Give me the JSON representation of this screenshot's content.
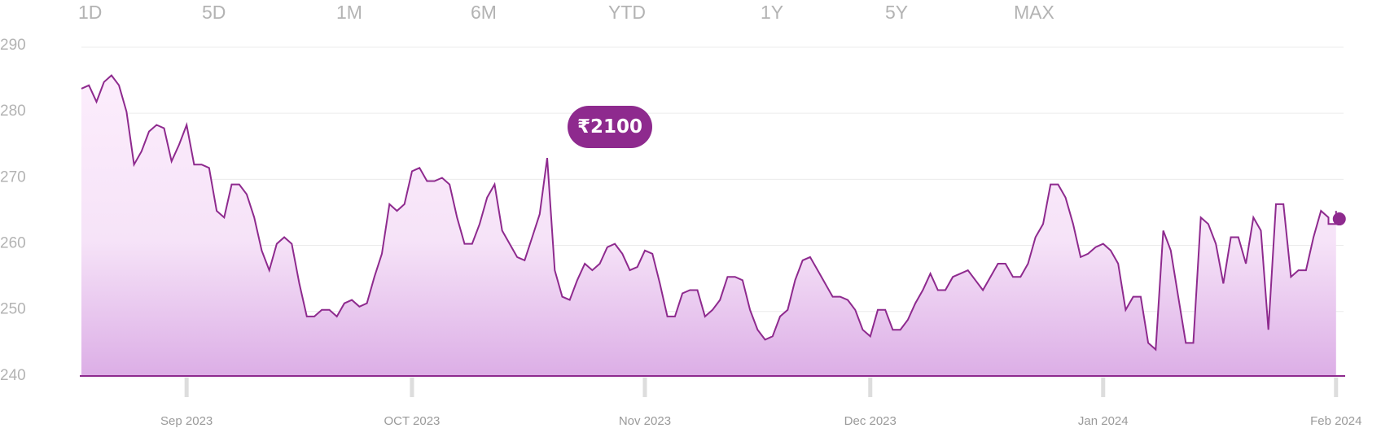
{
  "range_tabs": [
    "1D",
    "5D",
    "1M",
    "6M",
    "YTD",
    "1Y",
    "5Y",
    "MAX"
  ],
  "tooltip": {
    "price": "₹2100"
  },
  "colors": {
    "line": "#8e2a8e",
    "fill_top": "#fcedfc",
    "fill_bottom": "#dcaee6",
    "marker": "#8e2a8e",
    "axis": "#8e2a8e",
    "grid": "#ececec"
  },
  "chart_data": {
    "type": "area",
    "title": "",
    "xlabel": "",
    "ylabel": "",
    "ylim": [
      239,
      290
    ],
    "y_ticks": [
      290,
      280,
      270,
      260,
      250,
      240
    ],
    "x_range": [
      "2023-08-18",
      "2024-02-02"
    ],
    "x_ticks": [
      {
        "label": "Sep 2023",
        "date": "2023-09-01"
      },
      {
        "label": "OCT 2023",
        "date": "2023-10-01"
      },
      {
        "label": "Nov 2023",
        "date": "2023-11-01"
      },
      {
        "label": "Dec 2023",
        "date": "2023-12-01"
      },
      {
        "label": "Jan 2024",
        "date": "2024-01-01"
      },
      {
        "label": "Feb 2024",
        "date": "2024-02-01"
      }
    ],
    "grid": true,
    "series": [
      {
        "points": [
          [
            "2023-08-18",
            282.5
          ],
          [
            "2023-08-19",
            283
          ],
          [
            "2023-08-20",
            280.5
          ],
          [
            "2023-08-21",
            283.5
          ],
          [
            "2023-08-22",
            284.5
          ],
          [
            "2023-08-23",
            283
          ],
          [
            "2023-08-24",
            279
          ],
          [
            "2023-08-25",
            271
          ],
          [
            "2023-08-26",
            273
          ],
          [
            "2023-08-27",
            276
          ],
          [
            "2023-08-28",
            277
          ],
          [
            "2023-08-29",
            276.5
          ],
          [
            "2023-08-30",
            271.5
          ],
          [
            "2023-08-31",
            274
          ],
          [
            "2023-09-01",
            277
          ],
          [
            "2023-09-02",
            271
          ],
          [
            "2023-09-03",
            271
          ],
          [
            "2023-09-04",
            270.5
          ],
          [
            "2023-09-05",
            264
          ],
          [
            "2023-09-06",
            263
          ],
          [
            "2023-09-07",
            268
          ],
          [
            "2023-09-08",
            268
          ],
          [
            "2023-09-09",
            266.5
          ],
          [
            "2023-09-10",
            263
          ],
          [
            "2023-09-11",
            258
          ],
          [
            "2023-09-12",
            255
          ],
          [
            "2023-09-13",
            259
          ],
          [
            "2023-09-14",
            260
          ],
          [
            "2023-09-15",
            259
          ],
          [
            "2023-09-16",
            253
          ],
          [
            "2023-09-17",
            248
          ],
          [
            "2023-09-18",
            248
          ],
          [
            "2023-09-19",
            249
          ],
          [
            "2023-09-20",
            249
          ],
          [
            "2023-09-21",
            248
          ],
          [
            "2023-09-22",
            250
          ],
          [
            "2023-09-23",
            250.5
          ],
          [
            "2023-09-24",
            249.5
          ],
          [
            "2023-09-25",
            250
          ],
          [
            "2023-09-26",
            254
          ],
          [
            "2023-09-27",
            257.5
          ],
          [
            "2023-09-28",
            265
          ],
          [
            "2023-09-29",
            264
          ],
          [
            "2023-09-30",
            265
          ],
          [
            "2023-10-01",
            270
          ],
          [
            "2023-10-02",
            270.5
          ],
          [
            "2023-10-03",
            268.5
          ],
          [
            "2023-10-04",
            268.5
          ],
          [
            "2023-10-05",
            269
          ],
          [
            "2023-10-06",
            268
          ],
          [
            "2023-10-07",
            263
          ],
          [
            "2023-10-08",
            259
          ],
          [
            "2023-10-09",
            259
          ],
          [
            "2023-10-10",
            262
          ],
          [
            "2023-10-11",
            266
          ],
          [
            "2023-10-12",
            268
          ],
          [
            "2023-10-13",
            261
          ],
          [
            "2023-10-14",
            259
          ],
          [
            "2023-10-15",
            257
          ],
          [
            "2023-10-16",
            256.5
          ],
          [
            "2023-10-17",
            260
          ],
          [
            "2023-10-18",
            263.5
          ],
          [
            "2023-10-19",
            272
          ],
          [
            "2023-10-20",
            255
          ],
          [
            "2023-10-21",
            251
          ],
          [
            "2023-10-22",
            250.5
          ],
          [
            "2023-10-23",
            253.5
          ],
          [
            "2023-10-24",
            256
          ],
          [
            "2023-10-25",
            255
          ],
          [
            "2023-10-26",
            256
          ],
          [
            "2023-10-27",
            258.5
          ],
          [
            "2023-10-28",
            259
          ],
          [
            "2023-10-29",
            257.5
          ],
          [
            "2023-10-30",
            255
          ],
          [
            "2023-10-31",
            255.5
          ],
          [
            "2023-11-01",
            258
          ],
          [
            "2023-11-02",
            257.5
          ],
          [
            "2023-11-03",
            253
          ],
          [
            "2023-11-04",
            248
          ],
          [
            "2023-11-05",
            248
          ],
          [
            "2023-11-06",
            251.5
          ],
          [
            "2023-11-07",
            252
          ],
          [
            "2023-11-08",
            252
          ],
          [
            "2023-11-09",
            248
          ],
          [
            "2023-11-10",
            249
          ],
          [
            "2023-11-11",
            250.5
          ],
          [
            "2023-11-12",
            254
          ],
          [
            "2023-11-13",
            254
          ],
          [
            "2023-11-14",
            253.5
          ],
          [
            "2023-11-15",
            249
          ],
          [
            "2023-11-16",
            246
          ],
          [
            "2023-11-17",
            244.5
          ],
          [
            "2023-11-18",
            245
          ],
          [
            "2023-11-19",
            248
          ],
          [
            "2023-11-20",
            249
          ],
          [
            "2023-11-21",
            253.5
          ],
          [
            "2023-11-22",
            256.5
          ],
          [
            "2023-11-23",
            257
          ],
          [
            "2023-11-24",
            255
          ],
          [
            "2023-11-25",
            253
          ],
          [
            "2023-11-26",
            251
          ],
          [
            "2023-11-27",
            251
          ],
          [
            "2023-11-28",
            250.5
          ],
          [
            "2023-11-29",
            249
          ],
          [
            "2023-11-30",
            246
          ],
          [
            "2023-12-01",
            245
          ],
          [
            "2023-12-02",
            249
          ],
          [
            "2023-12-03",
            249
          ],
          [
            "2023-12-04",
            246
          ],
          [
            "2023-12-05",
            246
          ],
          [
            "2023-12-06",
            247.5
          ],
          [
            "2023-12-07",
            250
          ],
          [
            "2023-12-08",
            252
          ],
          [
            "2023-12-09",
            254.5
          ],
          [
            "2023-12-10",
            252
          ],
          [
            "2023-12-11",
            252
          ],
          [
            "2023-12-12",
            254
          ],
          [
            "2023-12-13",
            254.5
          ],
          [
            "2023-12-14",
            255
          ],
          [
            "2023-12-15",
            253.5
          ],
          [
            "2023-12-16",
            252
          ],
          [
            "2023-12-17",
            254
          ],
          [
            "2023-12-18",
            256
          ],
          [
            "2023-12-19",
            256
          ],
          [
            "2023-12-20",
            254
          ],
          [
            "2023-12-21",
            254
          ],
          [
            "2023-12-22",
            256
          ],
          [
            "2023-12-23",
            260
          ],
          [
            "2023-12-24",
            262
          ],
          [
            "2023-12-25",
            268
          ],
          [
            "2023-12-26",
            268
          ],
          [
            "2023-12-27",
            266
          ],
          [
            "2023-12-28",
            262
          ],
          [
            "2023-12-29",
            257
          ],
          [
            "2023-12-30",
            257.5
          ],
          [
            "2023-12-31",
            258.5
          ],
          [
            "2024-01-01",
            259
          ],
          [
            "2024-01-02",
            258
          ],
          [
            "2024-01-03",
            256
          ],
          [
            "2024-01-04",
            249
          ],
          [
            "2024-01-05",
            251
          ],
          [
            "2024-01-06",
            251
          ],
          [
            "2024-01-07",
            244
          ],
          [
            "2024-01-08",
            243
          ],
          [
            "2024-01-09",
            261
          ],
          [
            "2024-01-10",
            258
          ],
          [
            "2024-01-11",
            251
          ],
          [
            "2024-01-12",
            244
          ],
          [
            "2024-01-13",
            244
          ],
          [
            "2024-01-14",
            263
          ],
          [
            "2024-01-15",
            262
          ],
          [
            "2024-01-16",
            259
          ],
          [
            "2024-01-17",
            253
          ],
          [
            "2024-01-18",
            260
          ],
          [
            "2024-01-19",
            260
          ],
          [
            "2024-01-20",
            256
          ],
          [
            "2024-01-21",
            263
          ],
          [
            "2024-01-22",
            261
          ],
          [
            "2024-01-23",
            246
          ],
          [
            "2024-01-24",
            265
          ],
          [
            "2024-01-25",
            265
          ],
          [
            "2024-01-26",
            254
          ],
          [
            "2024-01-27",
            255
          ],
          [
            "2024-01-28",
            255
          ],
          [
            "2024-01-29",
            260
          ],
          [
            "2024-01-30",
            264
          ],
          [
            "2024-01-31",
            263
          ],
          [
            "2024-01-31",
            262
          ],
          [
            "2024-02-01",
            262
          ],
          [
            "2024-02-01",
            264
          ]
        ]
      }
    ]
  }
}
